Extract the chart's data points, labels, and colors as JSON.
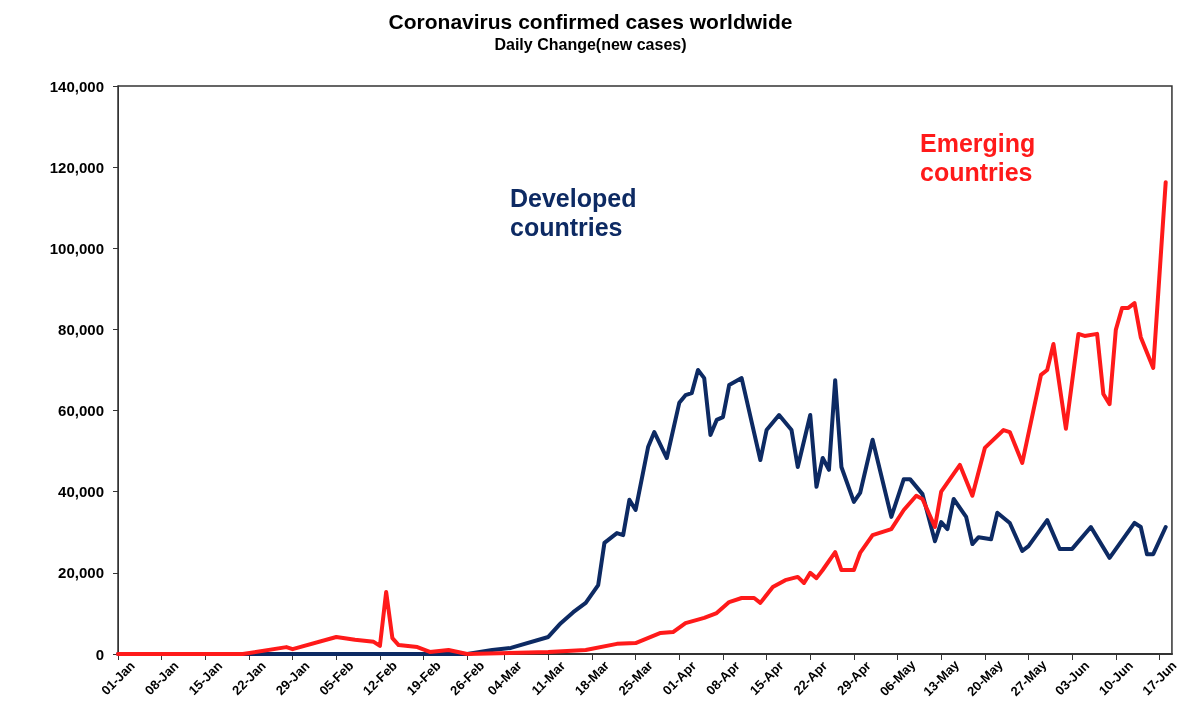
{
  "chart_data": {
    "type": "line",
    "title": "Coronavirus confirmed cases worldwide",
    "subtitle": "Daily Change(new cases)",
    "xlim": [
      "--01-01",
      "--06-19"
    ],
    "xticks": [
      {
        "value": "--01-01",
        "label": "01-Jan"
      },
      {
        "value": "--01-08",
        "label": "08-Jan"
      },
      {
        "value": "--01-15",
        "label": "15-Jan"
      },
      {
        "value": "--01-22",
        "label": "22-Jan"
      },
      {
        "value": "--01-29",
        "label": "29-Jan"
      },
      {
        "value": "--02-05",
        "label": "05-Feb"
      },
      {
        "value": "--02-12",
        "label": "12-Feb"
      },
      {
        "value": "--02-19",
        "label": "19-Feb"
      },
      {
        "value": "--02-26",
        "label": "26-Feb"
      },
      {
        "value": "--03-04",
        "label": "04-Mar"
      },
      {
        "value": "--03-11",
        "label": "11-Mar"
      },
      {
        "value": "--03-18",
        "label": "18-Mar"
      },
      {
        "value": "--03-25",
        "label": "25-Mar"
      },
      {
        "value": "--04-01",
        "label": "01-Apr"
      },
      {
        "value": "--04-08",
        "label": "08-Apr"
      },
      {
        "value": "--04-15",
        "label": "15-Apr"
      },
      {
        "value": "--04-22",
        "label": "22-Apr"
      },
      {
        "value": "--04-29",
        "label": "29-Apr"
      },
      {
        "value": "--05-06",
        "label": "06-May"
      },
      {
        "value": "--05-13",
        "label": "13-May"
      },
      {
        "value": "--05-20",
        "label": "20-May"
      },
      {
        "value": "--05-27",
        "label": "27-May"
      },
      {
        "value": "--06-03",
        "label": "03-Jun"
      },
      {
        "value": "--06-10",
        "label": "10-Jun"
      },
      {
        "value": "--06-17",
        "label": "17-Jun"
      }
    ],
    "ylim": [
      0,
      140000
    ],
    "yticks": [
      {
        "value": 0,
        "label": "0"
      },
      {
        "value": 20000,
        "label": "20,000"
      },
      {
        "value": 40000,
        "label": "40,000"
      },
      {
        "value": 60000,
        "label": "60,000"
      },
      {
        "value": 80000,
        "label": "80,000"
      },
      {
        "value": 100000,
        "label": "100,000"
      },
      {
        "value": 120000,
        "label": "120,000"
      },
      {
        "value": 140000,
        "label": "140,000"
      }
    ],
    "line_style": "solid",
    "marker": "none",
    "series": [
      {
        "name": "Developed countries",
        "color": "#0d2a63",
        "x": [
          "--01-01",
          "--02-26",
          "--03-02",
          "--03-05",
          "--03-11",
          "--03-13",
          "--03-15",
          "--03-17",
          "--03-19",
          "--03-20",
          "--03-22",
          "--03-23",
          "--03-24",
          "--03-25",
          "--03-27",
          "--03-28",
          "--03-30",
          "--04-01",
          "--04-02",
          "--04-03",
          "--04-04",
          "--04-05",
          "--04-06",
          "--04-07",
          "--04-08",
          "--04-09",
          "--04-11",
          "--04-14",
          "--04-15",
          "--04-17",
          "--04-19",
          "--04-20",
          "--04-22",
          "--04-23",
          "--04-24",
          "--04-25",
          "--04-26",
          "--04-27",
          "--04-29",
          "--04-30",
          "--05-02",
          "--05-05",
          "--05-07",
          "--05-08",
          "--05-10",
          "--05-12",
          "--05-13",
          "--05-14",
          "--05-15",
          "--05-17",
          "--05-18",
          "--05-19",
          "--05-21",
          "--05-22",
          "--05-24",
          "--05-26",
          "--05-27",
          "--05-30",
          "--06-01",
          "--06-03",
          "--06-06",
          "--06-09",
          "--06-13",
          "--06-14",
          "--06-15",
          "--06-16",
          "--06-18"
        ],
        "values": [
          0,
          0,
          1000,
          1500,
          4200,
          7600,
          10300,
          12600,
          17000,
          27400,
          29800,
          29300,
          38000,
          35500,
          51000,
          54700,
          48300,
          61900,
          63800,
          64300,
          70000,
          68000,
          54000,
          57700,
          58400,
          66300,
          68000,
          47800,
          55200,
          58900,
          55200,
          46100,
          58900,
          41200,
          48300,
          45400,
          67500,
          46100,
          37500,
          39700,
          52800,
          33800,
          43100,
          43100,
          39400,
          27800,
          32500,
          30800,
          38200,
          33800,
          27100,
          28800,
          28300,
          34800,
          32300,
          25400,
          26600,
          33000,
          25900,
          25900,
          31300,
          23700,
          32300,
          31300,
          24600,
          24600,
          31300
        ]
      },
      {
        "name": "Emerging countries",
        "color": "#ff1a1a",
        "x": [
          "--01-01",
          "--01-21",
          "--01-28",
          "--01-29",
          "--02-05",
          "--02-08",
          "--02-11",
          "--02-12",
          "--02-13",
          "--02-14",
          "--02-15",
          "--02-18",
          "--02-20",
          "--02-23",
          "--02-26",
          "--03-11",
          "--03-17",
          "--03-22",
          "--03-25",
          "--03-29",
          "--03-31",
          "--04-02",
          "--04-05",
          "--04-07",
          "--04-09",
          "--04-11",
          "--04-13",
          "--04-14",
          "--04-16",
          "--04-18",
          "--04-20",
          "--04-21",
          "--04-22",
          "--04-23",
          "--04-24",
          "--04-26",
          "--04-27",
          "--04-29",
          "--04-30",
          "--05-02",
          "--05-05",
          "--05-07",
          "--05-09",
          "--05-10",
          "--05-12",
          "--05-13",
          "--05-16",
          "--05-18",
          "--05-20",
          "--05-23",
          "--05-24",
          "--05-26",
          "--05-29",
          "--05-30",
          "--05-31",
          "--06-02",
          "--06-04",
          "--06-05",
          "--06-07",
          "--06-08",
          "--06-09",
          "--06-10",
          "--06-11",
          "--06-12",
          "--06-13",
          "--06-14",
          "--06-16",
          "--06-18"
        ],
        "values": [
          0,
          0,
          1700,
          1200,
          4200,
          3500,
          3000,
          2000,
          15300,
          3900,
          2200,
          1700,
          500,
          1000,
          0,
          500,
          1000,
          2500,
          2700,
          5200,
          5400,
          7600,
          8900,
          10100,
          12800,
          13800,
          13800,
          12600,
          16500,
          18200,
          19000,
          17500,
          20000,
          18700,
          20700,
          25100,
          20700,
          20700,
          24900,
          29300,
          30800,
          35500,
          39000,
          38200,
          31300,
          40000,
          46600,
          39000,
          50800,
          55200,
          54700,
          47100,
          68800,
          70000,
          76400,
          55500,
          78900,
          78400,
          78900,
          64100,
          61600,
          79900,
          85300,
          85300,
          86500,
          78100,
          70500,
          116300
        ]
      }
    ]
  }
}
